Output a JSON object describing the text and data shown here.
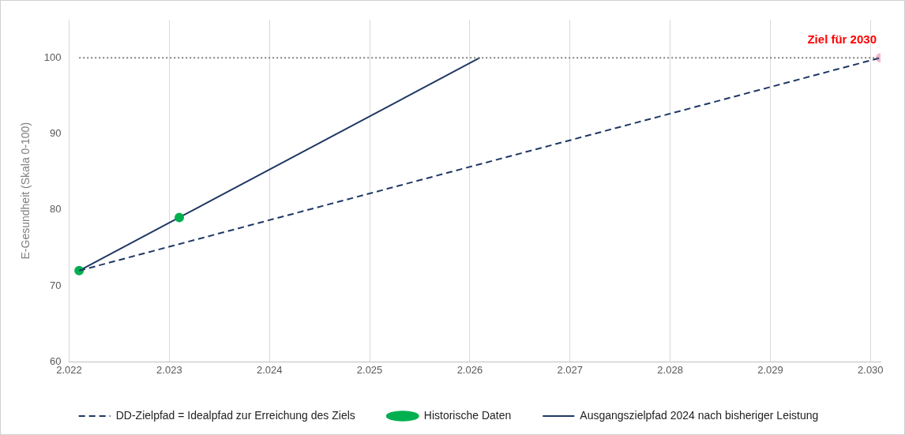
{
  "chart_data": {
    "type": "line",
    "ylabel": "E-Gesundheit (Skala 0-100)",
    "xlim": [
      2022,
      2030.1
    ],
    "xticks": [
      {
        "value": 2022,
        "label": "2.022"
      },
      {
        "value": 2023,
        "label": "2.023"
      },
      {
        "value": 2024,
        "label": "2.024"
      },
      {
        "value": 2025,
        "label": "2.025"
      },
      {
        "value": 2026,
        "label": "2.026"
      },
      {
        "value": 2027,
        "label": "2.027"
      },
      {
        "value": 2028,
        "label": "2.028"
      },
      {
        "value": 2029,
        "label": "2.029"
      },
      {
        "value": 2030,
        "label": "2.030"
      }
    ],
    "ylim": [
      60,
      105
    ],
    "yticks": [
      60,
      70,
      80,
      90,
      100
    ],
    "grid": "x",
    "legend": "bottom",
    "series": [
      {
        "name": "DD-Zielpfad = Idealpfad zur Erreichung des Ziels",
        "type": "line",
        "color": "#1f3864",
        "line_style": "dashed",
        "marker": "none",
        "x": [
          2022.1,
          2030.1
        ],
        "values": [
          72,
          100
        ]
      },
      {
        "name": "Historische Daten",
        "type": "scatter",
        "color": "#00b050",
        "marker": "circle",
        "x": [
          2022.1,
          2023.1
        ],
        "values": [
          72,
          79
        ]
      },
      {
        "name": "Ausgangszielpfad 2024 nach bisheriger Leistung",
        "type": "line",
        "color": "#1f3864",
        "line_style": "solid",
        "marker": "none",
        "x": [
          2022.1,
          2023.1,
          2026.1
        ],
        "values": [
          72,
          79,
          100
        ]
      },
      {
        "type": "scatter",
        "color": "#f4b6c8",
        "marker": "circle",
        "x": [
          2030.1
        ],
        "values": [
          100
        ]
      }
    ],
    "ref_lines": [
      {
        "axis": "y",
        "value": 100,
        "color": "#808080",
        "line_style": "dotted"
      }
    ],
    "annotations": [
      {
        "text": "Ziel für 2030",
        "x": 2030.1,
        "y": 100
      }
    ]
  }
}
